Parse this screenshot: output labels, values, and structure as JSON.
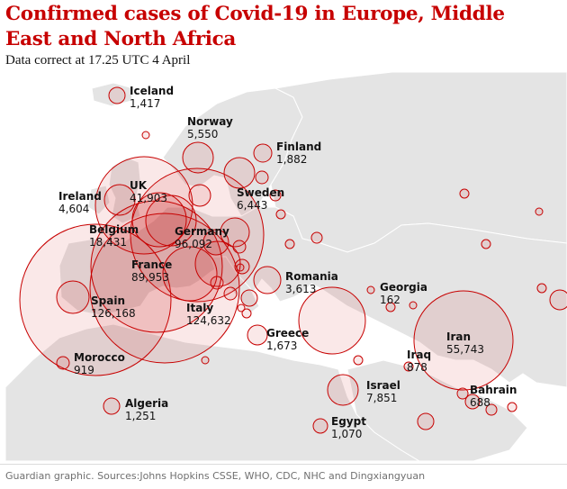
{
  "title": "Confirmed cases of Covid-19 in Europe, Middle East and North Africa",
  "subtitle": "Data correct at 17.25 UTC 4 April",
  "footer": "Guardian graphic. Sources:Johns Hopkins CSSE, WHO, CDC, NHC and Dingxiangyuan",
  "colors": {
    "title": "#c70000",
    "land": "#e4e4e4",
    "sea": "#ffffff",
    "bubble_fill": "rgba(199,0,0,0.09)",
    "bubble_stroke": "#c70000"
  },
  "labels": [
    {
      "country": "Iceland",
      "cases": "1,417"
    },
    {
      "country": "Norway",
      "cases": "5,550"
    },
    {
      "country": "Finland",
      "cases": "1,882"
    },
    {
      "country": "UK",
      "cases": "41,903"
    },
    {
      "country": "Ireland",
      "cases": "4,604"
    },
    {
      "country": "Sweden",
      "cases": "6,443"
    },
    {
      "country": "Belgium",
      "cases": "18,431"
    },
    {
      "country": "Germany",
      "cases": "96,092"
    },
    {
      "country": "France",
      "cases": "89,953"
    },
    {
      "country": "Romania",
      "cases": "3,613"
    },
    {
      "country": "Spain",
      "cases": "126,168"
    },
    {
      "country": "Italy",
      "cases": "124,632"
    },
    {
      "country": "Georgia",
      "cases": "162"
    },
    {
      "country": "Greece",
      "cases": "1,673"
    },
    {
      "country": "Iran",
      "cases": "55,743"
    },
    {
      "country": "Morocco",
      "cases": "919"
    },
    {
      "country": "Iraq",
      "cases": "878"
    },
    {
      "country": "Israel",
      "cases": "7,851"
    },
    {
      "country": "Bahrain",
      "cases": "688"
    },
    {
      "country": "Algeria",
      "cases": "1,251"
    },
    {
      "country": "Egypt",
      "cases": "1,070"
    }
  ]
}
